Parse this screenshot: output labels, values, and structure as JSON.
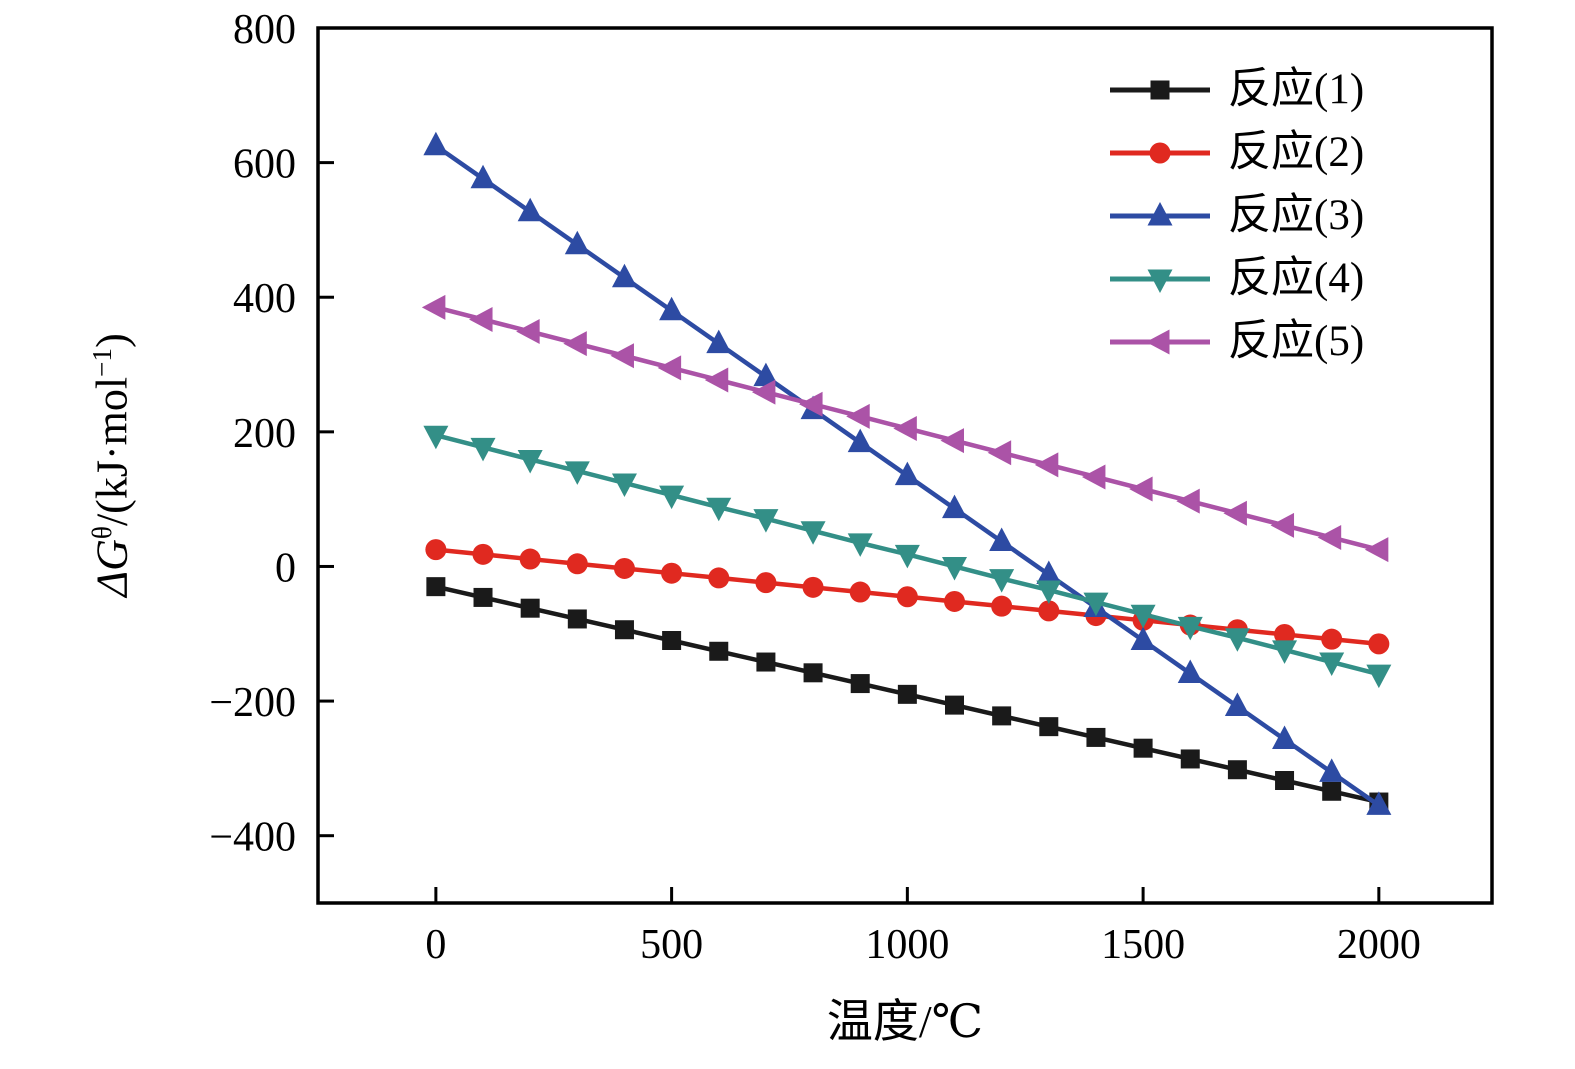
{
  "chart_data": {
    "type": "line",
    "x": [
      0,
      100,
      200,
      300,
      400,
      500,
      600,
      700,
      800,
      900,
      1000,
      1100,
      1200,
      1300,
      1400,
      1500,
      1600,
      1700,
      1800,
      1900,
      2000
    ],
    "series": [
      {
        "name": "反应(1)",
        "color": "#1a1a1a",
        "marker": "square",
        "values": [
          -30,
          -46,
          -62,
          -78,
          -94,
          -110,
          -126,
          -142,
          -158,
          -174,
          -190,
          -206,
          -222,
          -238,
          -254,
          -270,
          -286,
          -302,
          -318,
          -334,
          -350
        ]
      },
      {
        "name": "反应(2)",
        "color": "#e02920",
        "marker": "circle",
        "values": [
          25,
          18,
          11,
          4,
          -3,
          -10,
          -17,
          -24,
          -31,
          -38,
          -45,
          -52,
          -59,
          -66,
          -73,
          -80,
          -87,
          -94,
          -101,
          -108,
          -115
        ]
      },
      {
        "name": "反应(3)",
        "color": "#2d4ba3",
        "marker": "triangle-up",
        "values": [
          625,
          576,
          527,
          478,
          429,
          380,
          331,
          282,
          233,
          184,
          135,
          86,
          37,
          -12,
          -61,
          -110,
          -159,
          -208,
          -257,
          -306,
          -355
        ]
      },
      {
        "name": "反应(4)",
        "color": "#338f87",
        "marker": "triangle-down",
        "values": [
          195,
          177,
          159,
          142,
          124,
          106,
          88,
          71,
          53,
          35,
          18,
          0,
          -18,
          -35,
          -53,
          -71,
          -89,
          -106,
          -124,
          -142,
          -160
        ]
      },
      {
        "name": "反应(5)",
        "color": "#ab53a7",
        "marker": "triangle-left",
        "values": [
          385,
          367,
          349,
          331,
          313,
          295,
          277,
          259,
          241,
          223,
          205,
          187,
          169,
          151,
          133,
          115,
          97,
          79,
          61,
          43,
          25
        ]
      }
    ],
    "xlabel": "温度/℃",
    "ylabel": "ΔG^θ/(kJ·mol^−1)",
    "ylabel_parts": {
      "prefix": "Δ",
      "var": "G",
      "sup1": "θ",
      "mid": "/(kJ·mol",
      "sup2": "−1",
      "suffix": ")"
    },
    "xlim": [
      -250,
      2240
    ],
    "ylim": [
      -500,
      800
    ],
    "xticks": [
      0,
      500,
      1000,
      1500,
      2000
    ],
    "yticks": [
      -400,
      -200,
      0,
      200,
      400,
      600,
      800
    ],
    "grid": false,
    "legend_position": "top-right"
  }
}
